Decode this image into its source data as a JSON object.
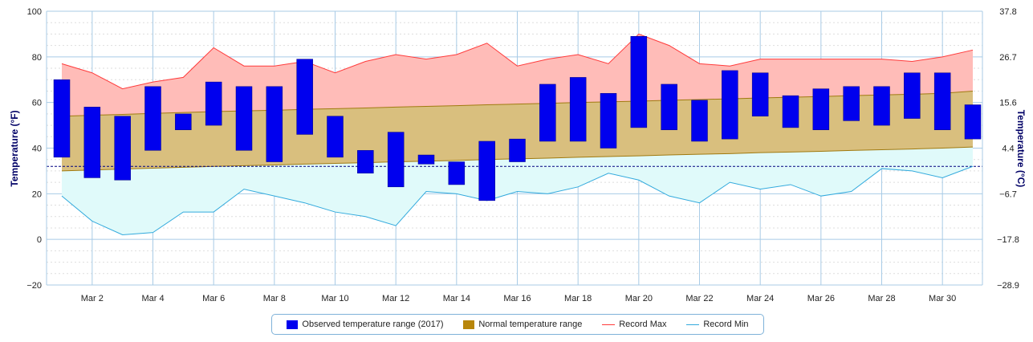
{
  "chart_data": {
    "type": "bar",
    "xlabel": "",
    "ylabel": "Temperature (°F)",
    "ylabel_right": "Temperature (°C)",
    "ylim": [
      -20,
      100
    ],
    "y_ticks": [
      "100",
      "80",
      "60",
      "40",
      "20",
      "0",
      "−20"
    ],
    "y_ticks_right": [
      "37.8",
      "26.7",
      "15.6",
      "4.4",
      "−6.7",
      "−17.8",
      "−28.9"
    ],
    "x_ticks": [
      "Mar 2",
      "Mar 4",
      "Mar 6",
      "Mar 8",
      "Mar 10",
      "Mar 12",
      "Mar 14",
      "Mar 16",
      "Mar 18",
      "Mar 20",
      "Mar 22",
      "Mar 24",
      "Mar 26",
      "Mar 28",
      "Mar 30"
    ],
    "freezing_line": 32,
    "days": [
      1,
      2,
      3,
      4,
      5,
      6,
      7,
      8,
      9,
      10,
      11,
      12,
      13,
      14,
      15,
      16,
      17,
      18,
      19,
      20,
      21,
      22,
      23,
      24,
      25,
      26,
      27,
      28,
      29,
      30,
      31
    ],
    "series": [
      {
        "name": "Observed temperature range (2017)",
        "color": "#0000ee",
        "low": [
          36,
          27,
          26,
          39,
          48,
          50,
          39,
          34,
          46,
          36,
          29,
          23,
          33,
          24,
          17,
          34,
          43,
          43,
          40,
          49,
          48,
          43,
          44,
          54,
          49,
          48,
          52,
          50,
          53,
          48,
          44
        ],
        "high": [
          70,
          58,
          54,
          67,
          55,
          69,
          67,
          67,
          79,
          54,
          39,
          47,
          37,
          34,
          43,
          44,
          68,
          71,
          64,
          89,
          68,
          61,
          74,
          73,
          63,
          66,
          67,
          67,
          73,
          73,
          59
        ]
      },
      {
        "name": "Normal temperature range",
        "color": "#b8860b",
        "low": [
          30,
          30.4,
          30.8,
          31.2,
          31.6,
          32,
          32.3,
          32.6,
          33,
          33.3,
          33.6,
          34,
          34.3,
          34.6,
          35,
          35.3,
          35.6,
          36,
          36.3,
          36.6,
          37,
          37.3,
          37.6,
          38,
          38.3,
          38.6,
          39,
          39.3,
          39.6,
          40,
          40.5
        ],
        "high": [
          54,
          54.4,
          54.8,
          55.2,
          55.6,
          56,
          56.3,
          56.6,
          57,
          57.3,
          57.6,
          58,
          58.3,
          58.6,
          59,
          59.3,
          59.6,
          60,
          60.3,
          60.6,
          61,
          61.3,
          61.6,
          62,
          62.3,
          62.6,
          63,
          63.3,
          63.6,
          64,
          65
        ]
      },
      {
        "name": "Record Max",
        "color": "#ff3b3b",
        "values": [
          77,
          73,
          66,
          69,
          71,
          84,
          76,
          76,
          78,
          73,
          78,
          81,
          79,
          81,
          86,
          76,
          79,
          81,
          77,
          90,
          85,
          77,
          76,
          79,
          79,
          79,
          79,
          79,
          78,
          80,
          83
        ]
      },
      {
        "name": "Record Min",
        "color": "#33aadd",
        "values": [
          19,
          8,
          2,
          3,
          12,
          12,
          22,
          19,
          16,
          12,
          10,
          6,
          21,
          20,
          17,
          21,
          20,
          23,
          29,
          26,
          19,
          16,
          25,
          22,
          24,
          19,
          21,
          31,
          30,
          27,
          32
        ]
      }
    ],
    "grid": true,
    "legend_position": "bottom-center"
  }
}
